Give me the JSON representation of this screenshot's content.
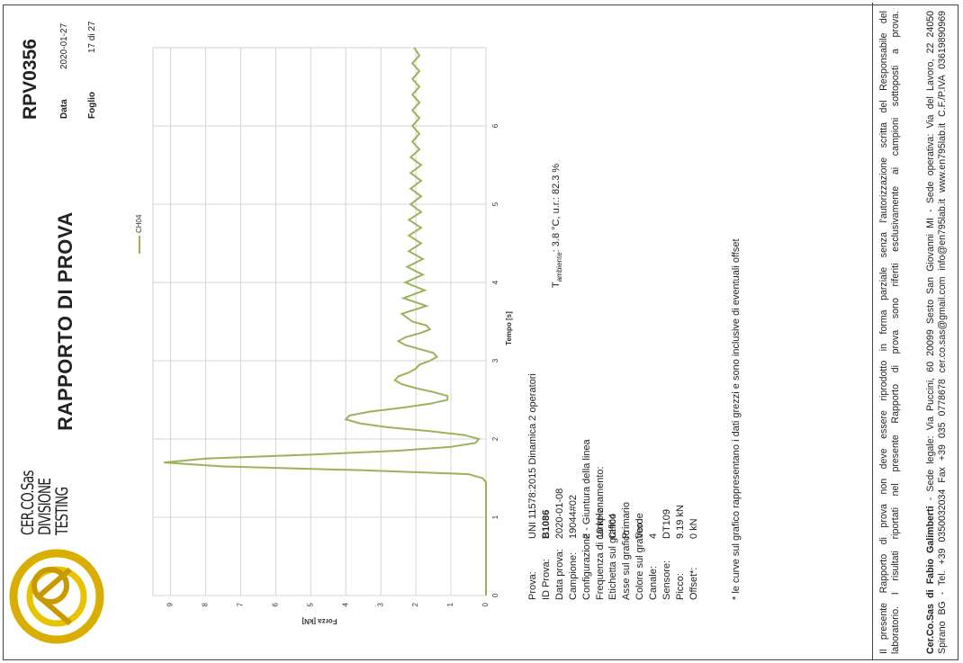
{
  "header": {
    "brand": [
      "CER.CO.Sas",
      "DIVISIONE",
      "TESTING"
    ],
    "title": "RAPPORTO DI PROVA",
    "report_id": "RPV0356",
    "date_label": "Data",
    "date": "2020-01-27",
    "sheet_label": "Foglio",
    "sheet": "17 di 27"
  },
  "chart_data": {
    "type": "line",
    "x_label": "Tempo [s]",
    "y_label": "Forza [kN]",
    "x": [
      0,
      1.45,
      1.5,
      1.55,
      1.6,
      1.65,
      1.7,
      1.75,
      1.8,
      1.85,
      1.9,
      1.95,
      2.0,
      2.05,
      2.1,
      2.15,
      2.2,
      2.25,
      2.3,
      2.35,
      2.4,
      2.45,
      2.5,
      2.55,
      2.6,
      2.65,
      2.7,
      2.75,
      2.8,
      2.85,
      2.9,
      2.95,
      3.0,
      3.05,
      3.1,
      3.15,
      3.2,
      3.25,
      3.3,
      3.35,
      3.4,
      3.45,
      3.5,
      3.6,
      3.7,
      3.8,
      3.9,
      4.0,
      4.1,
      4.2,
      4.3,
      4.4,
      4.5,
      4.6,
      4.7,
      4.8,
      4.9,
      5.0,
      5.1,
      5.2,
      5.3,
      5.4,
      5.5,
      5.6,
      5.7,
      5.8,
      5.9,
      6.0,
      6.1,
      6.2,
      6.3,
      6.4,
      6.5,
      6.6,
      6.7,
      6.8,
      6.9,
      7.0
    ],
    "series": [
      {
        "name": "CH04",
        "color": "#9bb35a",
        "values": [
          0,
          0,
          0.1,
          0.5,
          3.5,
          7.5,
          9.19,
          8.0,
          5.0,
          2.5,
          1.0,
          0.3,
          0.2,
          0.6,
          1.6,
          2.8,
          3.6,
          4.0,
          3.9,
          3.3,
          2.4,
          1.6,
          1.1,
          1.1,
          1.5,
          2.0,
          2.4,
          2.6,
          2.5,
          2.2,
          2.0,
          1.9,
          1.6,
          1.4,
          1.5,
          1.9,
          2.3,
          2.5,
          2.3,
          1.9,
          1.6,
          1.7,
          2.1,
          2.4,
          1.7,
          2.35,
          1.75,
          2.3,
          1.8,
          2.25,
          1.8,
          2.2,
          1.85,
          2.2,
          1.85,
          2.2,
          1.85,
          2.15,
          1.85,
          2.15,
          1.85,
          2.15,
          1.85,
          2.15,
          1.9,
          2.1,
          1.9,
          2.1,
          1.9,
          2.1,
          1.9,
          2.1,
          1.9,
          2.1,
          1.9,
          2.1,
          1.9,
          2.05
        ]
      }
    ],
    "xlim": [
      0,
      7
    ],
    "ylim": [
      0,
      9.5
    ],
    "xticks": [
      0,
      1,
      2,
      3,
      4,
      5,
      6
    ],
    "yticks": [
      0,
      1,
      2,
      3,
      4,
      5,
      6,
      7,
      8,
      9
    ],
    "grid": true
  },
  "info": {
    "rows": [
      [
        "Prova:",
        "UNI 11578:2015 Dinamica 2 operatori"
      ],
      [
        "ID Prova:",
        "B1086"
      ],
      [
        "Data prova:",
        "2020-01-08"
      ],
      [
        "Campione:",
        "19044#02"
      ],
      [
        "Configurazione",
        "2 - Giuntura della linea"
      ],
      [
        "Frequenza di campionamento:",
        "10 kHz"
      ],
      [
        "Etichetta sul grafico",
        "CH04"
      ],
      [
        "Asse sul grafico",
        "Primario"
      ],
      [
        "Colore sul grafico",
        "Verde"
      ],
      [
        "Canale:",
        "4"
      ],
      [
        "Sensore:",
        "DT109"
      ],
      [
        "Picco:",
        "9.19 kN"
      ],
      [
        "Offset*:",
        "0 kN"
      ]
    ],
    "ambient": {
      "symbol": "T",
      "subscript": "ambiente",
      "text": ": 3.8 °C, u.r.: 82.3 %"
    },
    "note": "* le curve sul grafico rappresentano i dati grezzi e sono inclusive di eventuali offset"
  },
  "footer": {
    "disclaimer": [
      "Il presente Rapporto di prova non deve essere riprodotto in forma parziale senza l'autorizzazione scritta del Responsabile del",
      "laboratorio. I risultati riportati nel presente Rapporto di prova sono riferiti esclusivamente ai campioni sottoposti a prova."
    ],
    "company": "Cer.Co.Sas di Fabio Galimberti",
    "address": " - Sede legale: Via Puccini, 60 20099 Sesto San Giovanni MI - Sede operativa: Via del Lavoro, 22 24050",
    "contacts": "Spirano BG - Tel. +39 0350032034 Fax +39 035 0778678 cer.co.sas@gmail.com info@en795lab.it www.en795lab.it C.F./P.IVA 03619890969"
  }
}
